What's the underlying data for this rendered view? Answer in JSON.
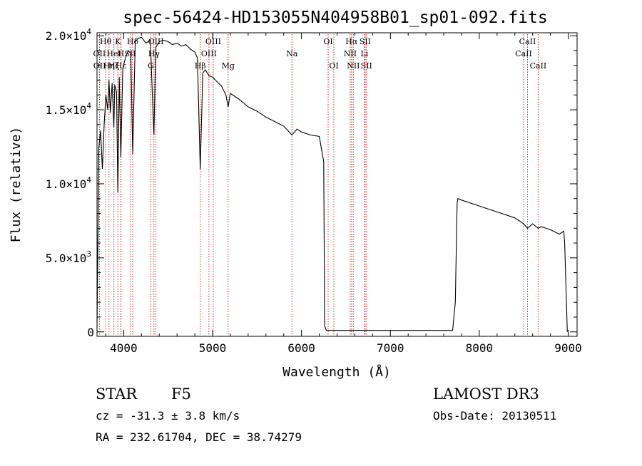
{
  "chart_data": {
    "type": "line",
    "title": "spec-56424-HD153055N404958B01_sp01-092.fits",
    "xlabel": "Wavelength (Å)",
    "ylabel": "Flux (relative)",
    "xlim": [
      3700,
      9100
    ],
    "ylim": [
      -300,
      20200
    ],
    "xticks": [
      {
        "value": 4000,
        "label": "4000"
      },
      {
        "value": 5000,
        "label": "5000"
      },
      {
        "value": 6000,
        "label": "6000"
      },
      {
        "value": 7000,
        "label": "7000"
      },
      {
        "value": 8000,
        "label": "8000"
      },
      {
        "value": 9000,
        "label": "9000"
      }
    ],
    "yticks": [
      {
        "value": 0,
        "mantissa": "0",
        "exp": ""
      },
      {
        "value": 5000,
        "mantissa": "5.0×10",
        "exp": "3"
      },
      {
        "value": 10000,
        "mantissa": "1.0×10",
        "exp": "4"
      },
      {
        "value": 15000,
        "mantissa": "1.5×10",
        "exp": "4"
      },
      {
        "value": 20000,
        "mantissa": "2.0×10",
        "exp": "4"
      }
    ],
    "series": [
      {
        "name": "spectrum",
        "x": [
          3700,
          3720,
          3740,
          3760,
          3780,
          3800,
          3820,
          3835,
          3850,
          3870,
          3889,
          3900,
          3920,
          3934,
          3950,
          3968,
          3990,
          4020,
          4050,
          4080,
          4101,
          4130,
          4160,
          4200,
          4250,
          4300,
          4330,
          4340,
          4360,
          4400,
          4450,
          4500,
          4550,
          4600,
          4650,
          4700,
          4750,
          4800,
          4830,
          4861,
          4890,
          4920,
          4960,
          5000,
          5050,
          5100,
          5150,
          5175,
          5200,
          5300,
          5400,
          5500,
          5600,
          5700,
          5800,
          5893,
          5950,
          6000,
          6100,
          6200,
          6250,
          6260,
          6280,
          6400,
          6600,
          6800,
          7000,
          7200,
          7400,
          7600,
          7700,
          7730,
          7750,
          7760,
          7800,
          8000,
          8200,
          8400,
          8498,
          8542,
          8600,
          8662,
          8700,
          8800,
          8900,
          8950,
          8960,
          8990
        ],
        "y": [
          300,
          12400,
          13600,
          11000,
          14000,
          16000,
          15000,
          17000,
          14800,
          16800,
          13800,
          16700,
          16200,
          9400,
          17200,
          11800,
          17800,
          18500,
          19000,
          18800,
          12000,
          19600,
          19800,
          19900,
          19500,
          19700,
          14800,
          13300,
          19200,
          19600,
          19700,
          19600,
          19400,
          19500,
          19300,
          19400,
          19100,
          18900,
          18500,
          11000,
          17500,
          17700,
          17300,
          17200,
          16900,
          16600,
          16000,
          15200,
          16100,
          15700,
          15200,
          14900,
          14500,
          14200,
          13900,
          13300,
          13700,
          13500,
          13300,
          13200,
          11500,
          400,
          100,
          100,
          100,
          100,
          100,
          100,
          100,
          100,
          100,
          2000,
          8700,
          9000,
          8900,
          8500,
          8100,
          7700,
          7300,
          7000,
          7300,
          7000,
          7100,
          6900,
          6600,
          6800,
          6000,
          0
        ]
      }
    ],
    "lines": [
      {
        "name": "Hθ",
        "wl": 3797,
        "row": 0
      },
      {
        "name": "OII",
        "wl": 3727,
        "row": 1
      },
      {
        "name": "OII",
        "wl": 3729,
        "row": 2
      },
      {
        "name": "Hη",
        "wl": 3835,
        "row": 2
      },
      {
        "name": "HeI",
        "wl": 3889,
        "row": 1
      },
      {
        "name": "Hζ",
        "wl": 3889,
        "row": 2
      },
      {
        "name": "K",
        "wl": 3934,
        "row": 0
      },
      {
        "name": "H",
        "wl": 3968,
        "row": 1
      },
      {
        "name": "Hε",
        "wl": 3970,
        "row": 2
      },
      {
        "name": "Hδ",
        "wl": 4101,
        "row": 0
      },
      {
        "name": "SII",
        "wl": 4072,
        "row": 1
      },
      {
        "name": "OIII",
        "wl": 4363,
        "row": 0
      },
      {
        "name": "Hγ",
        "wl": 4340,
        "row": 1
      },
      {
        "name": "G",
        "wl": 4305,
        "row": 2
      },
      {
        "name": "OIII",
        "wl": 5007,
        "row": 0
      },
      {
        "name": "OIII",
        "wl": 4959,
        "row": 1
      },
      {
        "name": "Hβ",
        "wl": 4861,
        "row": 2
      },
      {
        "name": "Mg",
        "wl": 5175,
        "row": 2
      },
      {
        "name": "Na",
        "wl": 5893,
        "row": 1
      },
      {
        "name": "OI",
        "wl": 6300,
        "row": 0
      },
      {
        "name": "OI",
        "wl": 6364,
        "row": 2
      },
      {
        "name": "Hα",
        "wl": 6563,
        "row": 0
      },
      {
        "name": "NII",
        "wl": 6548,
        "row": 1
      },
      {
        "name": "NII",
        "wl": 6583,
        "row": 2
      },
      {
        "name": "SII",
        "wl": 6716,
        "row": 0
      },
      {
        "name": "Li",
        "wl": 6708,
        "row": 1
      },
      {
        "name": "SII",
        "wl": 6731,
        "row": 2
      },
      {
        "name": "CaII",
        "wl": 8542,
        "row": 0
      },
      {
        "name": "CaII",
        "wl": 8498,
        "row": 1
      },
      {
        "name": "CaII",
        "wl": 8662,
        "row": 2
      }
    ]
  },
  "info": {
    "object_class": "STAR",
    "subclass": "F5",
    "survey": "LAMOST DR3",
    "cz": "cz = -31.3 ± 3.8 km/s",
    "obs_date": "Obs-Date: 20130511",
    "coords": "RA = 232.61704, DEC =  38.74279"
  },
  "colors": {
    "line": "#000000",
    "marker": "#cc2a2a",
    "axis": "#000000"
  }
}
